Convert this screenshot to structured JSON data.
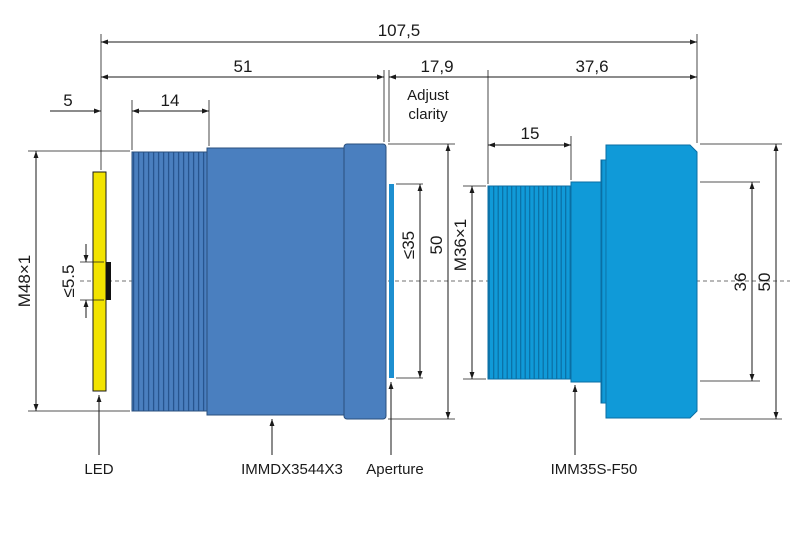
{
  "dimensions": {
    "overall_length": "107,5",
    "dx_length": "51",
    "gap": "17,9",
    "lens_length": "37,6",
    "led_offset": "5",
    "thread_length": "14",
    "lens_thread_length": "15",
    "led_height": "≤5.5",
    "dx_thread": "M48×1",
    "aperture_size": "≤35",
    "dx_diameter": "50",
    "lens_thread": "M36×1",
    "lens_inner": "36",
    "lens_diameter": "50"
  },
  "notes": {
    "adjust_line1": "Adjust",
    "adjust_line2": "clarity"
  },
  "labels": {
    "led": "LED",
    "module": "IMMDX3544X3",
    "aperture": "Aperture",
    "lens": "IMM35S-F50"
  },
  "colors": {
    "led": "#f2e300",
    "module": "#4a7fbf",
    "lens": "#109ad8",
    "aperture": "#1d8fd0"
  }
}
